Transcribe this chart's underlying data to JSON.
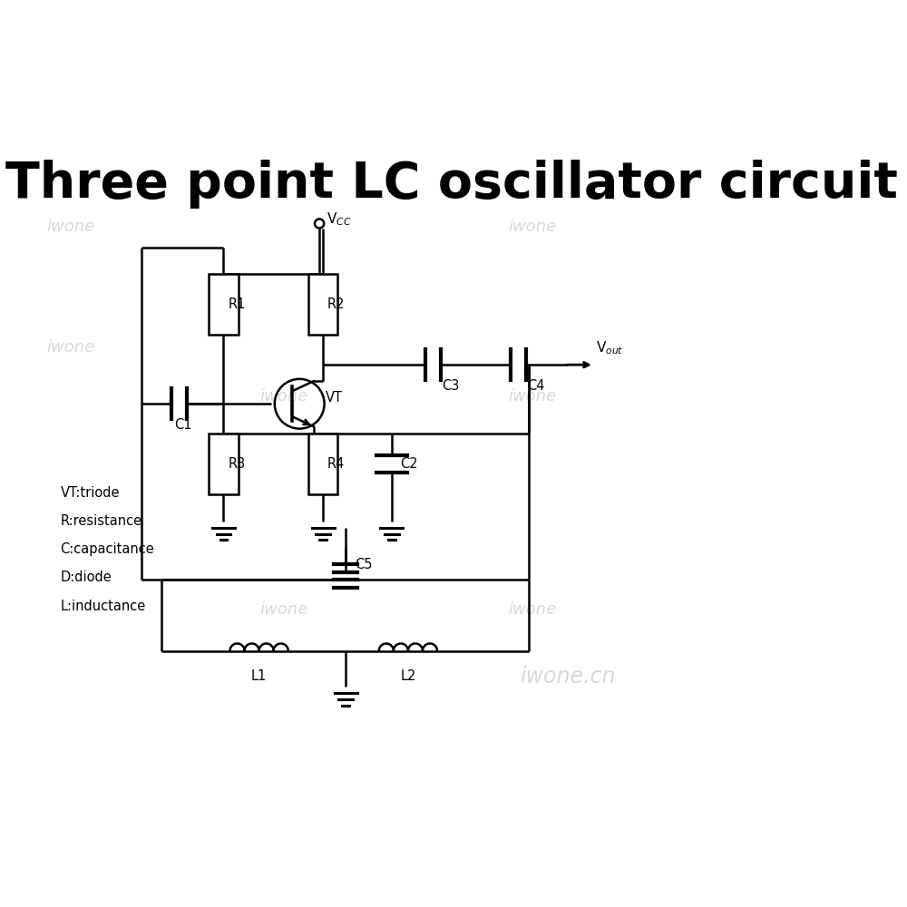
{
  "title": "Three point LC oscillator circuit",
  "title_fontsize": 40,
  "bg_color": "#ffffff",
  "line_color": "#000000",
  "watermark_color": "#c8c8c8",
  "watermark_text": "iwone",
  "watermark_cn": "iwone.cn",
  "legend_lines": [
    "VT:triode",
    "R:resistance",
    "C:capacitance",
    "D:diode",
    "L:inductance"
  ],
  "lw": 1.8
}
